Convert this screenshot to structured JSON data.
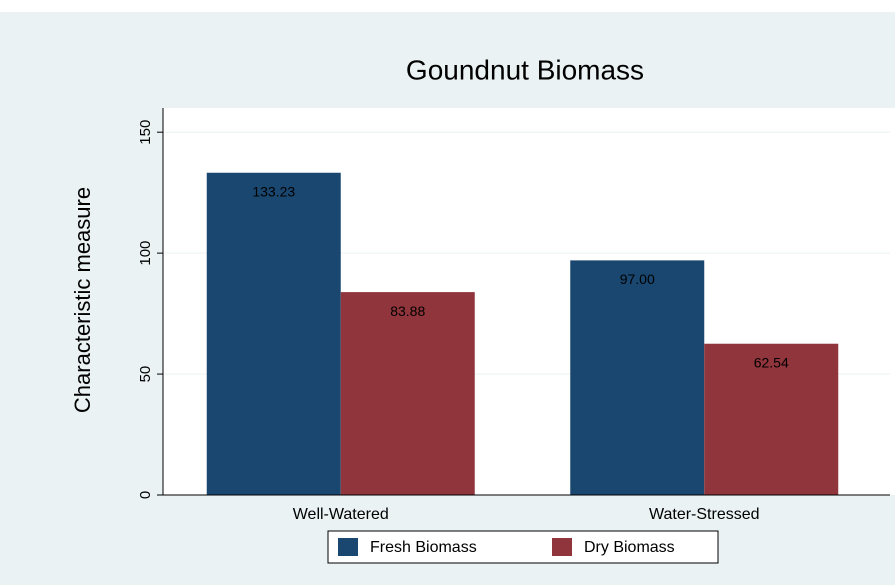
{
  "chart_data": {
    "type": "bar",
    "title": "Goundnut Biomass",
    "y_label": "Characteristic measure",
    "categories": [
      "Well-Watered",
      "Water-Stressed"
    ],
    "series": [
      {
        "name": "Fresh Biomass",
        "color": "#1a476f",
        "values": [
          133.23,
          97.0
        ],
        "value_labels": [
          "133.23",
          "97.00"
        ]
      },
      {
        "name": "Dry Biomass",
        "color": "#90353b",
        "values": [
          83.88,
          62.54
        ],
        "value_labels": [
          "83.88",
          "62.54"
        ]
      }
    ],
    "ylim": [
      0,
      160
    ],
    "yticks": [
      0,
      50,
      100,
      150
    ],
    "grid": true,
    "legend": "bottom"
  }
}
